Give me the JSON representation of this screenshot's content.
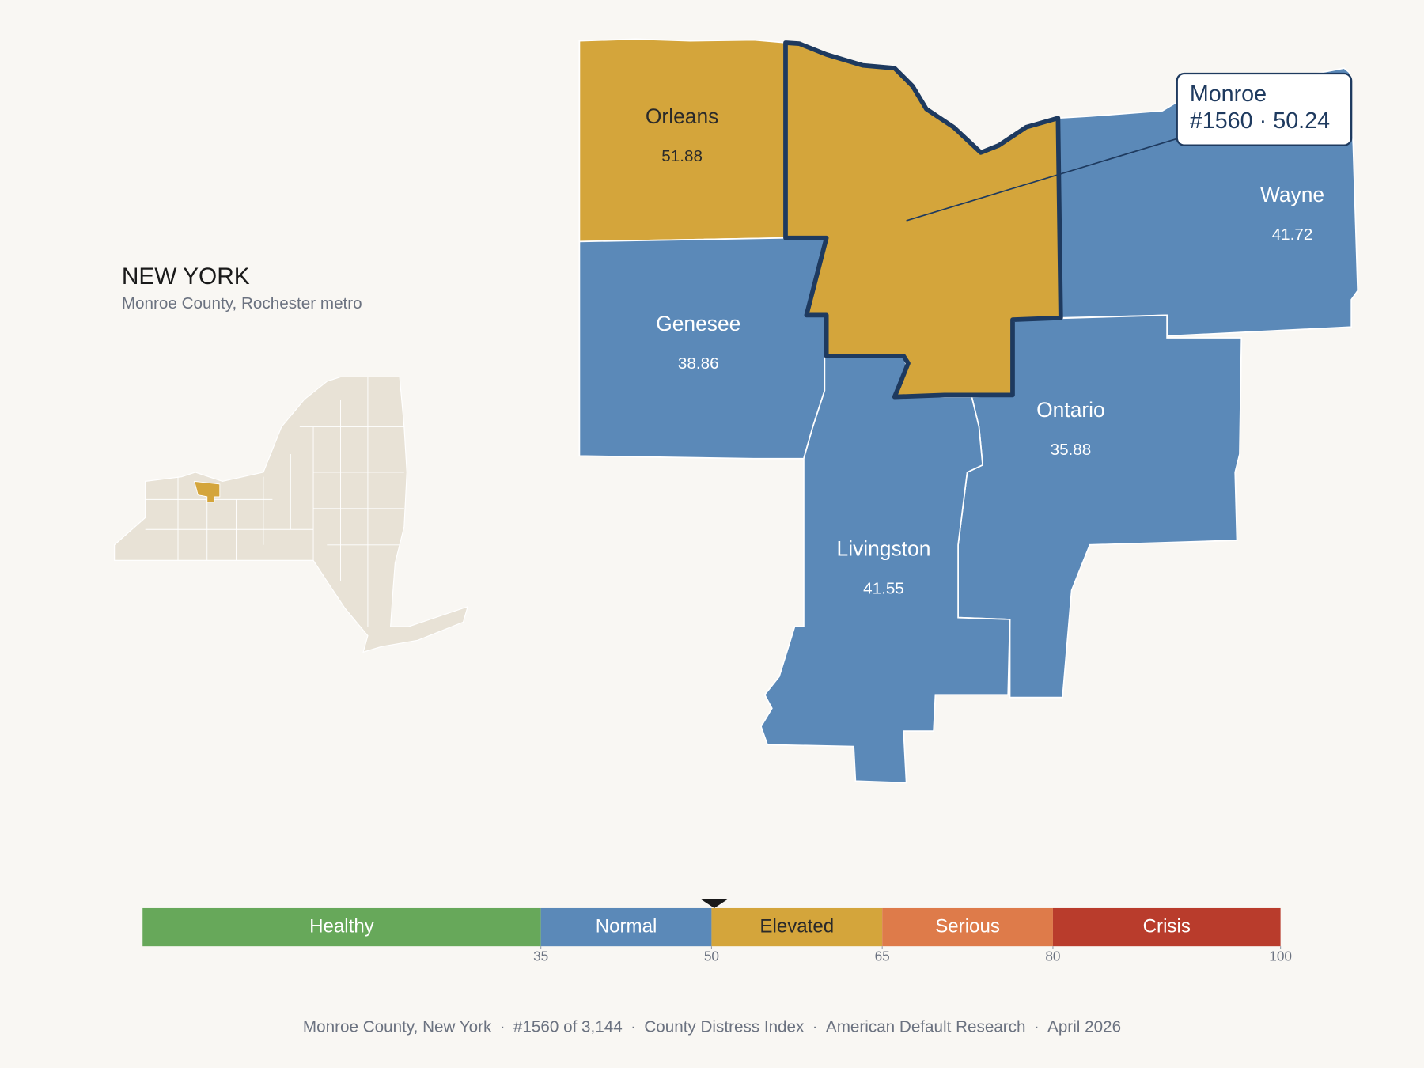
{
  "header": {
    "title": "NEW YORK",
    "subtitle": "Monroe County, Rochester metro"
  },
  "counties": [
    {
      "name": "Orleans",
      "value": 51.88
    },
    {
      "name": "Genesee",
      "value": 38.86
    },
    {
      "name": "Wayne",
      "value": 41.72
    },
    {
      "name": "Ontario",
      "value": 35.88
    },
    {
      "name": "Livingston",
      "value": 41.55
    }
  ],
  "callout": {
    "name": "Monroe",
    "rank": "#1560",
    "separator": "·",
    "value": 50.24
  },
  "scale": {
    "range": [
      0,
      100
    ],
    "ticks": [
      35,
      50,
      65,
      80,
      100
    ],
    "segments": [
      {
        "label": "Healthy",
        "color": "#67A85A",
        "text_color": "#ffffff"
      },
      {
        "label": "Normal",
        "color": "#5B89B8",
        "text_color": "#ffffff"
      },
      {
        "label": "Elevated",
        "color": "#D4A53B",
        "text_color": "#2a2a2a"
      },
      {
        "label": "Serious",
        "color": "#DE7B4A",
        "text_color": "#ffffff"
      },
      {
        "label": "Crisis",
        "color": "#B93C2C",
        "text_color": "#ffffff"
      }
    ]
  },
  "footer": {
    "separator": "·",
    "items": [
      "Monroe County, New York",
      "#1560 of 3,144",
      "County Distress Index",
      "American Default Research",
      "April 2026"
    ]
  }
}
